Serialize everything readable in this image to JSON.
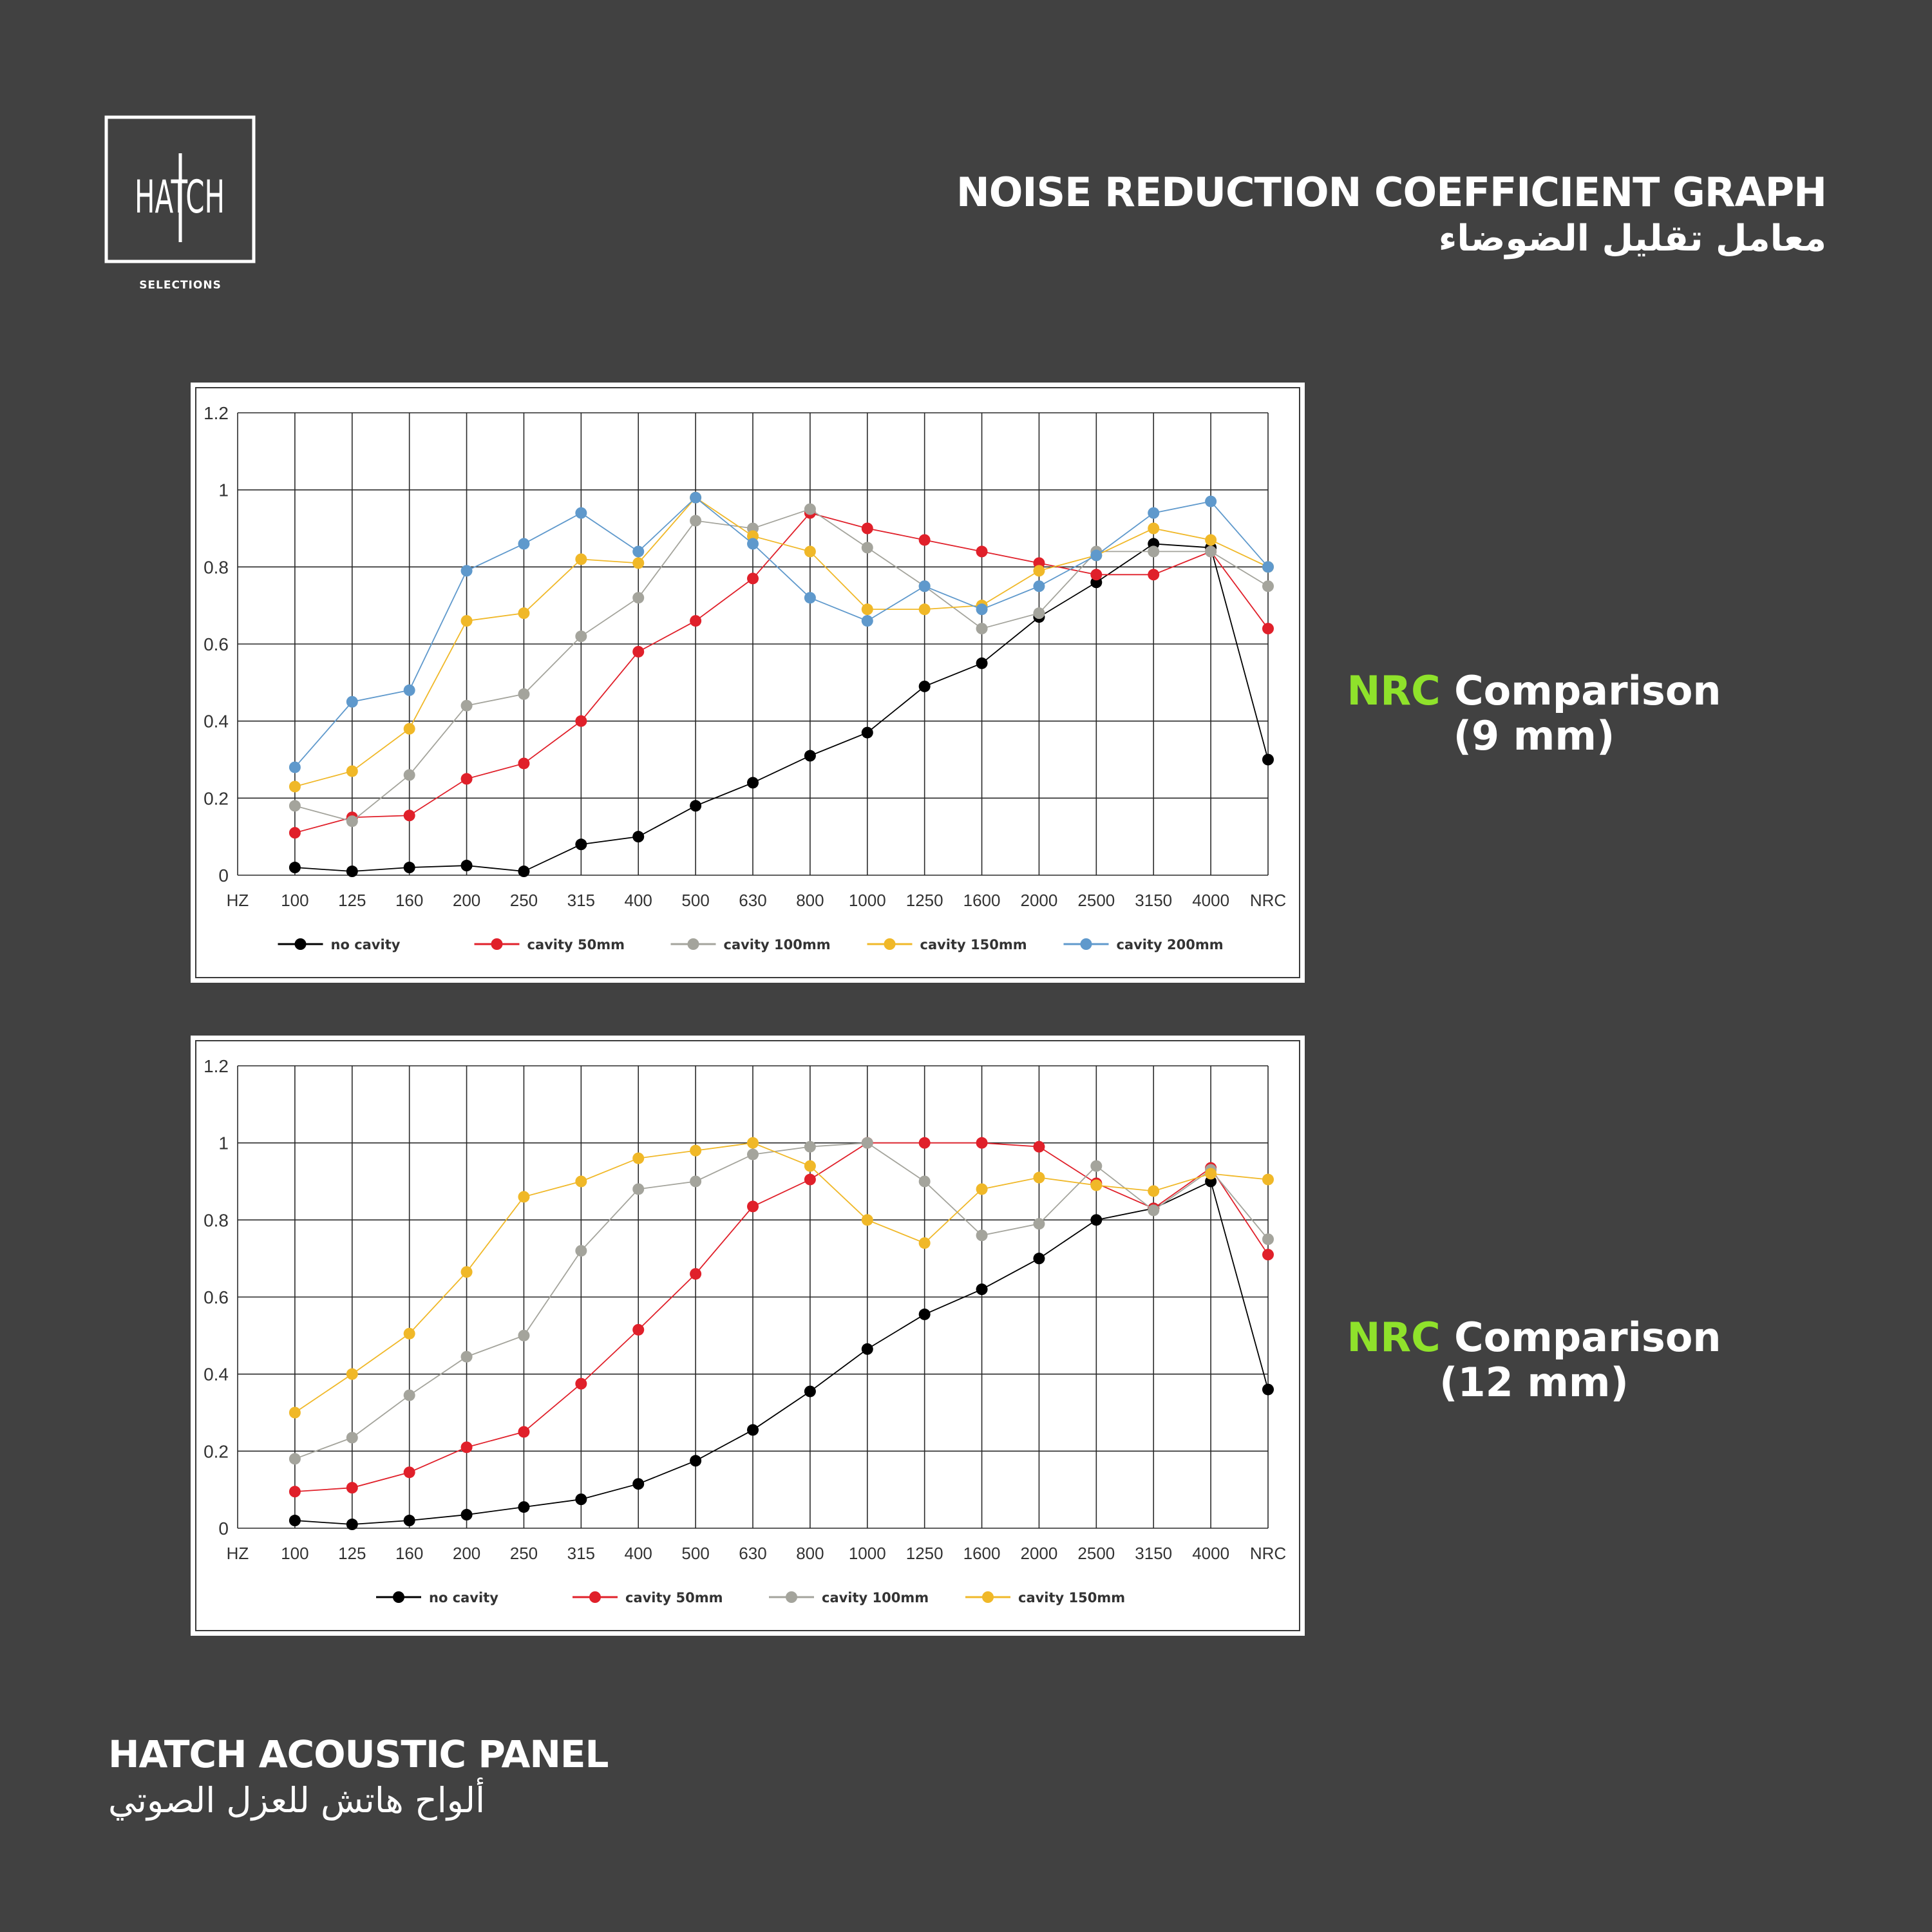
{
  "brand": {
    "logo_text": "HATCH",
    "logo_sub": "SELECTIONS"
  },
  "header": {
    "title": "NOISE REDUCTION COEFFICIENT GRAPH",
    "title_ar": "معامل تقليل الضوضاء"
  },
  "labels": {
    "nrc9": {
      "accent": "NRC",
      "rest": " Comparison",
      "size": "(9 mm)"
    },
    "nrc12": {
      "accent": "NRC",
      "rest": " Comparison",
      "size": "(12 mm)"
    }
  },
  "footer": {
    "title": "HATCH ACOUSTIC PANEL",
    "title_ar": "ألواح هاتش للعزل الصوتي"
  },
  "chart_data": [
    {
      "type": "line",
      "x_axis_label": "HZ",
      "categories": [
        "100",
        "125",
        "160",
        "200",
        "250",
        "315",
        "400",
        "500",
        "630",
        "800",
        "1000",
        "1250",
        "1600",
        "2000",
        "2500",
        "3150",
        "4000",
        "NRC"
      ],
      "ylim": [
        0,
        1.2
      ],
      "yticks": [
        "0",
        "0.2",
        "0.4",
        "0.6",
        "0.8",
        "1",
        "1.2"
      ],
      "grid": true,
      "legend_position": "bottom",
      "series": [
        {
          "name": "no cavity",
          "color": "#000000",
          "values": [
            0.02,
            0.01,
            0.02,
            0.025,
            0.01,
            0.08,
            0.1,
            0.18,
            0.24,
            0.31,
            0.37,
            0.49,
            0.55,
            0.67,
            0.76,
            0.86,
            0.85,
            0.3
          ]
        },
        {
          "name": "cavity 50mm",
          "color": "#e0202a",
          "values": [
            0.11,
            0.15,
            0.155,
            0.25,
            0.29,
            0.4,
            0.58,
            0.66,
            0.77,
            0.94,
            0.9,
            0.87,
            0.84,
            0.81,
            0.78,
            0.78,
            0.84,
            0.64
          ]
        },
        {
          "name": "cavity 100mm",
          "color": "#a4a49c",
          "values": [
            0.18,
            0.14,
            0.26,
            0.44,
            0.47,
            0.62,
            0.72,
            0.92,
            0.9,
            0.95,
            0.85,
            0.75,
            0.64,
            0.68,
            0.84,
            0.84,
            0.84,
            0.75
          ]
        },
        {
          "name": "cavity 150mm",
          "color": "#f0b828",
          "values": [
            0.23,
            0.27,
            0.38,
            0.66,
            0.68,
            0.82,
            0.81,
            0.98,
            0.88,
            0.84,
            0.69,
            0.69,
            0.7,
            0.79,
            0.83,
            0.9,
            0.87,
            0.8
          ]
        },
        {
          "name": "cavity 200mm",
          "color": "#5f99cc",
          "values": [
            0.28,
            0.45,
            0.48,
            0.79,
            0.86,
            0.94,
            0.84,
            0.98,
            0.86,
            0.72,
            0.66,
            0.75,
            0.69,
            0.75,
            0.83,
            0.94,
            0.97,
            0.8
          ]
        }
      ]
    },
    {
      "type": "line",
      "x_axis_label": "HZ",
      "categories": [
        "100",
        "125",
        "160",
        "200",
        "250",
        "315",
        "400",
        "500",
        "630",
        "800",
        "1000",
        "1250",
        "1600",
        "2000",
        "2500",
        "3150",
        "4000",
        "NRC"
      ],
      "ylim": [
        0,
        1.2
      ],
      "yticks": [
        "0",
        "0.2",
        "0.4",
        "0.6",
        "0.8",
        "1",
        "1.2"
      ],
      "grid": true,
      "legend_position": "bottom",
      "series": [
        {
          "name": "no cavity",
          "color": "#000000",
          "values": [
            0.02,
            0.01,
            0.02,
            0.035,
            0.055,
            0.075,
            0.115,
            0.175,
            0.255,
            0.355,
            0.465,
            0.555,
            0.62,
            0.7,
            0.8,
            0.83,
            0.9,
            0.36
          ]
        },
        {
          "name": "cavity 50mm",
          "color": "#e0202a",
          "values": [
            0.095,
            0.105,
            0.145,
            0.21,
            0.25,
            0.375,
            0.515,
            0.66,
            0.835,
            0.905,
            1.0,
            1.0,
            1.0,
            0.99,
            0.895,
            0.83,
            0.935,
            0.71
          ]
        },
        {
          "name": "cavity 100mm",
          "color": "#a4a49c",
          "values": [
            0.18,
            0.235,
            0.345,
            0.445,
            0.5,
            0.72,
            0.88,
            0.9,
            0.97,
            0.99,
            1.0,
            0.9,
            0.76,
            0.79,
            0.94,
            0.825,
            0.93,
            0.75
          ]
        },
        {
          "name": "cavity 150mm",
          "color": "#f0b828",
          "values": [
            0.3,
            0.4,
            0.505,
            0.665,
            0.86,
            0.9,
            0.96,
            0.98,
            1.0,
            0.94,
            0.8,
            0.74,
            0.88,
            0.91,
            0.89,
            0.875,
            0.92,
            0.905
          ]
        }
      ]
    }
  ]
}
